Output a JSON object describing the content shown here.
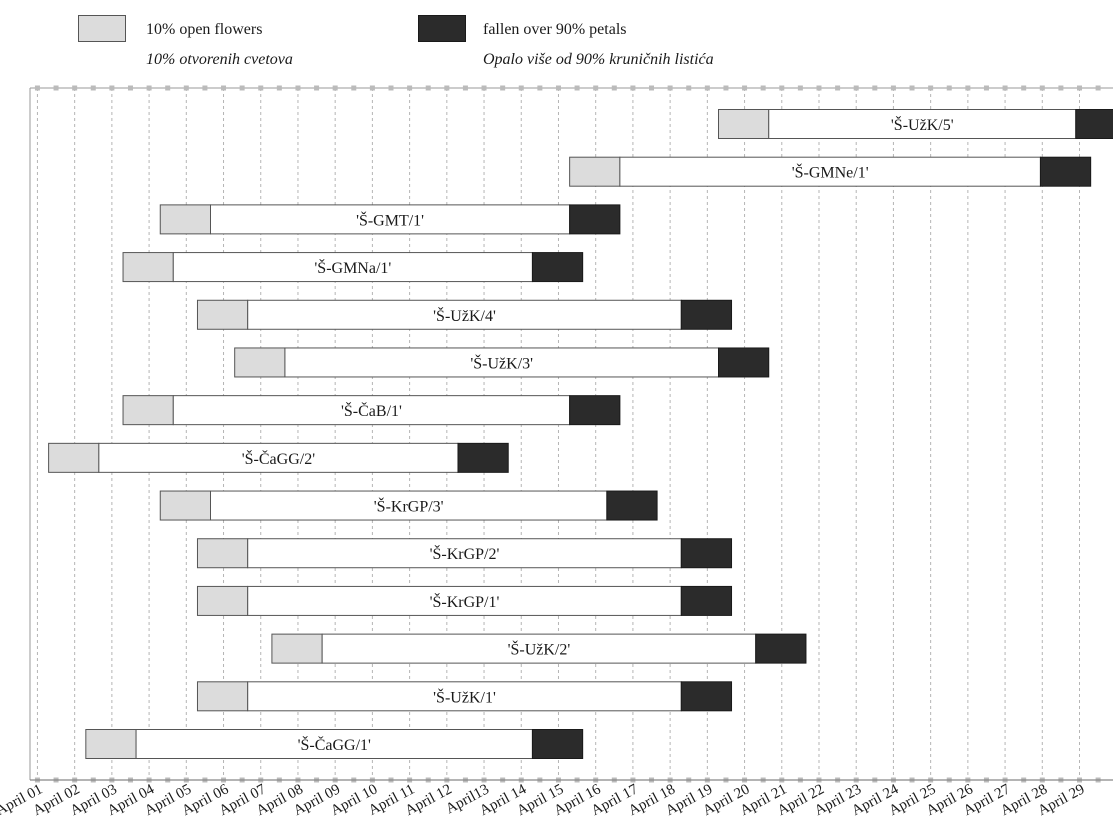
{
  "legend": {
    "items": [
      {
        "label": "10% open flowers",
        "sublabel": "10% otvorenih cvetova",
        "color": "#dcdcdc"
      },
      {
        "label": "fallen over 90% petals",
        "sublabel": "Opalo više od 90% kruničnih listića",
        "color": "#2b2b2b"
      }
    ]
  },
  "chart_data": {
    "type": "gantt",
    "x_ticks": [
      "April 01",
      "April 02",
      "April 03",
      "April 04",
      "April 05",
      "April 06",
      "April 07",
      "April 08",
      "April 09",
      "April 10",
      "April 11",
      "April 12",
      "April13",
      "April 14",
      "April 15",
      "April 16",
      "April 17",
      "April 18",
      "April 19",
      "April 20",
      "April 21",
      "April 22",
      "April 23",
      "April 24",
      "April 25",
      "April 26",
      "April 27",
      "April 28",
      "April 29"
    ],
    "xlim": [
      0.8,
      29.9
    ],
    "grid": true,
    "colors": {
      "open": "#dcdcdc",
      "full": "#ffffff",
      "fallen": "#2b2b2b"
    },
    "series": [
      {
        "name": "'Š-UžK/5'",
        "open_start": 19.3,
        "full_start": 20.65,
        "fallen_start": 28.9,
        "end": 30.2
      },
      {
        "name": "'Š-GMNe/1'",
        "open_start": 15.3,
        "full_start": 16.65,
        "fallen_start": 27.95,
        "end": 29.3
      },
      {
        "name": "'Š-GMT/1'",
        "open_start": 4.3,
        "full_start": 5.65,
        "fallen_start": 15.3,
        "end": 16.65
      },
      {
        "name": "'Š-GMNa/1'",
        "open_start": 3.3,
        "full_start": 4.65,
        "fallen_start": 14.3,
        "end": 15.65
      },
      {
        "name": "'Š-UžK/4'",
        "open_start": 5.3,
        "full_start": 6.65,
        "fallen_start": 18.3,
        "end": 19.65
      },
      {
        "name": "'Š-UžK/3'",
        "open_start": 6.3,
        "full_start": 7.65,
        "fallen_start": 19.3,
        "end": 20.65
      },
      {
        "name": "'Š-ČaB/1'",
        "open_start": 3.3,
        "full_start": 4.65,
        "fallen_start": 15.3,
        "end": 16.65
      },
      {
        "name": "'Š-ČaGG/2'",
        "open_start": 1.3,
        "full_start": 2.65,
        "fallen_start": 12.3,
        "end": 13.65
      },
      {
        "name": "'Š-KrGP/3'",
        "open_start": 4.3,
        "full_start": 5.65,
        "fallen_start": 16.3,
        "end": 17.65
      },
      {
        "name": "'Š-KrGP/2'",
        "open_start": 5.3,
        "full_start": 6.65,
        "fallen_start": 18.3,
        "end": 19.65
      },
      {
        "name": "'Š-KrGP/1'",
        "open_start": 5.3,
        "full_start": 6.65,
        "fallen_start": 18.3,
        "end": 19.65
      },
      {
        "name": "'Š-UžK/2'",
        "open_start": 7.3,
        "full_start": 8.65,
        "fallen_start": 20.3,
        "end": 21.65
      },
      {
        "name": "'Š-UžK/1'",
        "open_start": 5.3,
        "full_start": 6.65,
        "fallen_start": 18.3,
        "end": 19.65
      },
      {
        "name": "'Š-ČaGG/1'",
        "open_start": 2.3,
        "full_start": 3.65,
        "fallen_start": 14.3,
        "end": 15.65
      }
    ]
  }
}
